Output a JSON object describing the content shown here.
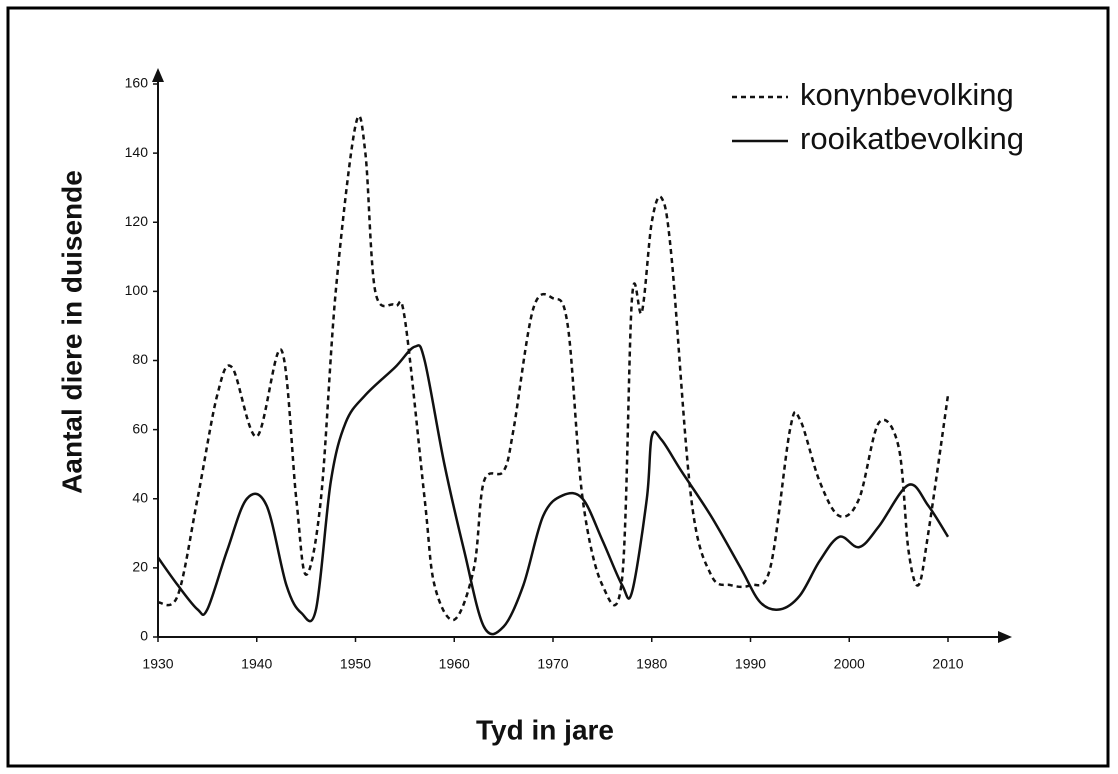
{
  "chart_data": {
    "type": "line",
    "x_label": "Tyd in jare",
    "y_label": "Aantal diere in duisende",
    "xlim": [
      1930,
      2010
    ],
    "ylim": [
      0,
      160
    ],
    "xticks": [
      1930,
      1940,
      1950,
      1960,
      1970,
      1980,
      1990,
      2000,
      2010
    ],
    "yticks": [
      0,
      20,
      40,
      60,
      80,
      100,
      120,
      140,
      160
    ],
    "legend": "top-right",
    "series": [
      {
        "name": "konynbevolking",
        "color": "#111111",
        "dash": "dotted",
        "x": [
          1930,
          1932,
          1934,
          1936,
          1937.5,
          1940,
          1942.5,
          1944,
          1945,
          1946.5,
          1948,
          1950,
          1951,
          1952,
          1954,
          1955,
          1957,
          1958,
          1960,
          1962,
          1963,
          1965,
          1966,
          1968,
          1970,
          1971.5,
          1973,
          1975,
          1977,
          1978,
          1979,
          1980,
          1981,
          1982,
          1984,
          1986,
          1988,
          1990,
          1992,
          1994,
          1995,
          1997,
          1999,
          2001,
          2003,
          2005,
          2006,
          2007,
          2008,
          2010
        ],
        "values": [
          10,
          12,
          40,
          70,
          78,
          58,
          83,
          40,
          18,
          40,
          100,
          148,
          140,
          100,
          96,
          92,
          40,
          15,
          5,
          20,
          45,
          48,
          60,
          95,
          98,
          90,
          40,
          15,
          17,
          98,
          94,
          120,
          127,
          110,
          40,
          18,
          15,
          15,
          20,
          60,
          63,
          45,
          35,
          40,
          62,
          55,
          25,
          15,
          30,
          70
        ]
      },
      {
        "name": "rooikatbevolking",
        "color": "#111111",
        "dash": "solid",
        "x": [
          1930,
          1932,
          1934,
          1935,
          1937,
          1939,
          1941,
          1943,
          1944.5,
          1946,
          1947.5,
          1949,
          1951,
          1954,
          1956,
          1957,
          1959,
          1961,
          1963,
          1965,
          1967,
          1969,
          1971,
          1973,
          1975,
          1977,
          1978,
          1979.5,
          1980,
          1981,
          1983,
          1986,
          1989,
          1991,
          1993,
          1995,
          1997,
          1999,
          2001,
          2003,
          2006,
          2008,
          2010
        ],
        "values": [
          23,
          15,
          8,
          8,
          25,
          40,
          38,
          15,
          7,
          8,
          45,
          62,
          70,
          78,
          84,
          80,
          50,
          25,
          3,
          3,
          15,
          35,
          41,
          40,
          28,
          15,
          13,
          40,
          58,
          57,
          48,
          35,
          20,
          10,
          8,
          12,
          22,
          29,
          26,
          32,
          44,
          38,
          29
        ]
      }
    ]
  }
}
